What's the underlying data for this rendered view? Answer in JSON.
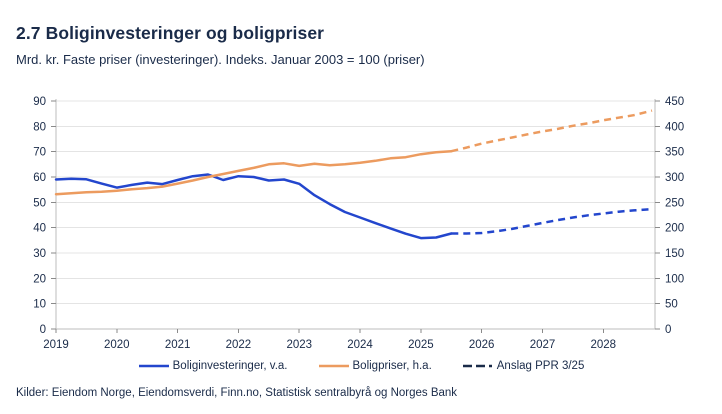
{
  "header": {
    "title": "2.7 Boliginvesteringer og boligpriser",
    "subtitle": "Mrd. kr. Faste priser (investeringer). Indeks. Januar 2003 = 100 (priser)"
  },
  "footer": {
    "sources": "Kilder: Eiendom Norge, Eiendomsverdi, Finn.no, Statistisk sentralbyrå og Norges Bank"
  },
  "colors": {
    "navy_text": "#1a2b49",
    "blue_line": "#2346cd",
    "orange_line": "#ec9b5f",
    "gridline": "#e4e4e4",
    "axis_line": "#bdbdbd",
    "tick_mark": "#8a8a8a"
  },
  "legend": [
    {
      "label": "Boliginvesteringer, v.a.",
      "color": "#2346cd",
      "dashed": false
    },
    {
      "label": "Boligpriser, h.a.",
      "color": "#ec9b5f",
      "dashed": false
    },
    {
      "label": "Anslag PPR 3/25",
      "color": "#1a2b49",
      "dashed": true
    }
  ],
  "chart_data": {
    "type": "line",
    "title": "2.7 Boliginvesteringer og boligpriser",
    "subtitle": "Mrd. kr. Faste priser (investeringer). Indeks. Januar 2003 = 100 (priser)",
    "grid": true,
    "legend_position": "bottom",
    "x_axis": {
      "range": [
        2019,
        2028.85
      ],
      "ticks": [
        2019,
        2020,
        2021,
        2022,
        2023,
        2024,
        2025,
        2026,
        2027,
        2028
      ]
    },
    "y_axis_left": {
      "label": "Mrd. kr. Faste priser (investeringer)",
      "range": [
        0,
        90
      ],
      "ticks": [
        0,
        10,
        20,
        30,
        40,
        50,
        60,
        70,
        80,
        90
      ]
    },
    "y_axis_right": {
      "label": "Indeks. Januar 2003 = 100 (priser)",
      "range": [
        0,
        450
      ],
      "ticks": [
        0,
        50,
        100,
        150,
        200,
        250,
        300,
        350,
        400,
        450
      ]
    },
    "series": [
      {
        "name": "Boliginvesteringer, v.a.",
        "axis": "left",
        "style": "solid",
        "color": "#2346cd",
        "points": [
          [
            2019.0,
            59.0
          ],
          [
            2019.25,
            59.3
          ],
          [
            2019.5,
            59.1
          ],
          [
            2019.75,
            57.4
          ],
          [
            2020.0,
            55.8
          ],
          [
            2020.25,
            56.9
          ],
          [
            2020.5,
            57.8
          ],
          [
            2020.75,
            57.2
          ],
          [
            2021.0,
            58.8
          ],
          [
            2021.25,
            60.3
          ],
          [
            2021.5,
            61.0
          ],
          [
            2021.75,
            58.8
          ],
          [
            2022.0,
            60.3
          ],
          [
            2022.25,
            60.0
          ],
          [
            2022.5,
            58.6
          ],
          [
            2022.75,
            59.0
          ],
          [
            2023.0,
            57.3
          ],
          [
            2023.25,
            52.8
          ],
          [
            2023.5,
            49.3
          ],
          [
            2023.75,
            46.2
          ],
          [
            2024.0,
            44.0
          ],
          [
            2024.25,
            41.8
          ],
          [
            2024.5,
            39.7
          ],
          [
            2024.75,
            37.6
          ],
          [
            2025.0,
            35.9
          ],
          [
            2025.25,
            36.1
          ],
          [
            2025.5,
            37.7
          ]
        ]
      },
      {
        "name": "Boliginvesteringer anslag (PPR 3/25)",
        "axis": "left",
        "style": "dashed",
        "color": "#2346cd",
        "points": [
          [
            2025.5,
            37.7
          ],
          [
            2025.75,
            37.7
          ],
          [
            2026.0,
            37.9
          ],
          [
            2026.25,
            38.6
          ],
          [
            2026.5,
            39.5
          ],
          [
            2026.75,
            40.7
          ],
          [
            2027.0,
            41.9
          ],
          [
            2027.25,
            43.0
          ],
          [
            2027.5,
            44.0
          ],
          [
            2027.75,
            44.9
          ],
          [
            2028.0,
            45.6
          ],
          [
            2028.25,
            46.3
          ],
          [
            2028.5,
            46.8
          ],
          [
            2028.8,
            47.3
          ]
        ]
      },
      {
        "name": "Boligpriser, h.a.",
        "axis": "right",
        "style": "solid",
        "color": "#ec9b5f",
        "points": [
          [
            2019.0,
            266
          ],
          [
            2019.25,
            268
          ],
          [
            2019.5,
            270
          ],
          [
            2019.75,
            271
          ],
          [
            2020.0,
            273
          ],
          [
            2020.25,
            276
          ],
          [
            2020.5,
            278
          ],
          [
            2020.75,
            281
          ],
          [
            2021.0,
            287
          ],
          [
            2021.25,
            293
          ],
          [
            2021.5,
            300
          ],
          [
            2021.75,
            306
          ],
          [
            2022.0,
            312
          ],
          [
            2022.25,
            318
          ],
          [
            2022.5,
            325
          ],
          [
            2022.75,
            327
          ],
          [
            2023.0,
            322
          ],
          [
            2023.25,
            326
          ],
          [
            2023.5,
            323
          ],
          [
            2023.75,
            325
          ],
          [
            2024.0,
            328
          ],
          [
            2024.25,
            332
          ],
          [
            2024.5,
            337
          ],
          [
            2024.75,
            339
          ],
          [
            2025.0,
            345
          ],
          [
            2025.25,
            349
          ],
          [
            2025.5,
            351
          ]
        ]
      },
      {
        "name": "Boligpriser anslag (PPR 3/25)",
        "axis": "right",
        "style": "dashed",
        "color": "#ec9b5f",
        "points": [
          [
            2025.5,
            351
          ],
          [
            2025.75,
            358
          ],
          [
            2026.0,
            366
          ],
          [
            2026.25,
            372
          ],
          [
            2026.5,
            378
          ],
          [
            2026.75,
            384
          ],
          [
            2027.0,
            390
          ],
          [
            2027.25,
            395
          ],
          [
            2027.5,
            401
          ],
          [
            2027.75,
            406
          ],
          [
            2028.0,
            412
          ],
          [
            2028.25,
            417
          ],
          [
            2028.5,
            422
          ],
          [
            2028.8,
            431
          ]
        ]
      }
    ]
  }
}
